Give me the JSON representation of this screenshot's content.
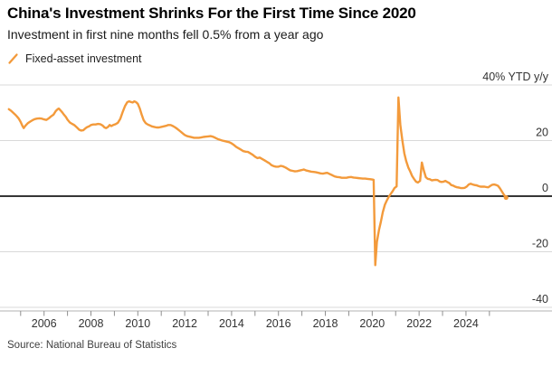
{
  "header": {
    "title": "China's Investment Shrinks For the First Time Since 2020",
    "subtitle": "Investment in first nine months fell 0.5% from a year ago"
  },
  "legend": {
    "series_label": "Fixed-asset investment",
    "swatch_icon": "orange-slash-icon",
    "swatch_color": "#F39A3B"
  },
  "footer": {
    "source": "Source: National Bureau of Statistics"
  },
  "chart_data": {
    "type": "line",
    "title": "China's Investment Shrinks For the First Time Since 2020",
    "subtitle": "Investment in first nine months fell 0.5% from a year ago",
    "unit_label": "40% YTD y/y",
    "xlabel": "",
    "ylabel": "YTD y/y %",
    "ylim": [
      -40,
      40
    ],
    "xlim": [
      2004.12,
      2027.67
    ],
    "grid": "horizontal",
    "legend_position": "top-left",
    "y_ticks": [
      {
        "value": 40,
        "label": "40% YTD y/y"
      },
      {
        "value": 20,
        "label": "20"
      },
      {
        "value": 0,
        "label": "0"
      },
      {
        "value": -20,
        "label": "-20"
      },
      {
        "value": -40,
        "label": "-40"
      }
    ],
    "x_ticks_minor_years": [
      2005,
      2006,
      2007,
      2008,
      2009,
      2010,
      2011,
      2012,
      2013,
      2014,
      2015,
      2016,
      2017,
      2018,
      2019,
      2020,
      2021,
      2022,
      2023,
      2024,
      2025
    ],
    "x_ticks_labeled": [
      {
        "year": 2006,
        "label": "2006"
      },
      {
        "year": 2008,
        "label": "2008"
      },
      {
        "year": 2010,
        "label": "2010"
      },
      {
        "year": 2012,
        "label": "2012"
      },
      {
        "year": 2014,
        "label": "2014"
      },
      {
        "year": 2016,
        "label": "2016"
      },
      {
        "year": 2018,
        "label": "2018"
      },
      {
        "year": 2020,
        "label": "2020"
      },
      {
        "year": 2022,
        "label": "2022"
      },
      {
        "year": 2024,
        "label": "2024"
      }
    ],
    "colors": {
      "series": "#F39A3B",
      "gridline": "#d9d9d9",
      "zero_line": "#1a1a1a",
      "axis_line": "#b3b3b3",
      "tick": "#8f8f8f",
      "tick_label": "#333333"
    },
    "end_point_marker": true,
    "series": [
      {
        "name": "Fixed-asset investment",
        "color": "#F39A3B",
        "points": [
          [
            2004.5,
            31.3
          ],
          [
            2004.58,
            30.8
          ],
          [
            2004.67,
            30.1
          ],
          [
            2004.76,
            29.4
          ],
          [
            2004.84,
            28.7
          ],
          [
            2004.92,
            27.9
          ],
          [
            2005.0,
            26.7
          ],
          [
            2005.08,
            25.2
          ],
          [
            2005.13,
            24.5
          ],
          [
            2005.2,
            25.3
          ],
          [
            2005.3,
            26.2
          ],
          [
            2005.4,
            26.8
          ],
          [
            2005.5,
            27.3
          ],
          [
            2005.6,
            27.7
          ],
          [
            2005.7,
            27.9
          ],
          [
            2005.8,
            28.0
          ],
          [
            2005.9,
            27.9
          ],
          [
            2006.0,
            27.6
          ],
          [
            2006.1,
            27.4
          ],
          [
            2006.2,
            28.0
          ],
          [
            2006.3,
            28.7
          ],
          [
            2006.4,
            29.3
          ],
          [
            2006.5,
            30.6
          ],
          [
            2006.58,
            31.3
          ],
          [
            2006.63,
            31.5
          ],
          [
            2006.7,
            30.9
          ],
          [
            2006.78,
            30.1
          ],
          [
            2006.85,
            29.3
          ],
          [
            2006.93,
            28.5
          ],
          [
            2007.0,
            27.5
          ],
          [
            2007.1,
            26.5
          ],
          [
            2007.2,
            26.0
          ],
          [
            2007.3,
            25.5
          ],
          [
            2007.4,
            24.7
          ],
          [
            2007.5,
            23.9
          ],
          [
            2007.58,
            23.6
          ],
          [
            2007.67,
            23.7
          ],
          [
            2007.75,
            24.3
          ],
          [
            2007.83,
            24.8
          ],
          [
            2007.92,
            25.1
          ],
          [
            2008.0,
            25.6
          ],
          [
            2008.1,
            25.8
          ],
          [
            2008.2,
            25.8
          ],
          [
            2008.3,
            26.0
          ],
          [
            2008.4,
            25.9
          ],
          [
            2008.5,
            25.4
          ],
          [
            2008.58,
            24.7
          ],
          [
            2008.65,
            24.5
          ],
          [
            2008.73,
            24.9
          ],
          [
            2008.8,
            25.6
          ],
          [
            2008.87,
            25.2
          ],
          [
            2008.95,
            25.6
          ],
          [
            2009.05,
            25.9
          ],
          [
            2009.15,
            26.4
          ],
          [
            2009.25,
            27.8
          ],
          [
            2009.35,
            30.2
          ],
          [
            2009.45,
            32.4
          ],
          [
            2009.55,
            33.8
          ],
          [
            2009.63,
            34.1
          ],
          [
            2009.7,
            33.9
          ],
          [
            2009.78,
            33.7
          ],
          [
            2009.85,
            34.1
          ],
          [
            2009.93,
            33.8
          ],
          [
            2010.0,
            33.2
          ],
          [
            2010.08,
            31.6
          ],
          [
            2010.16,
            29.4
          ],
          [
            2010.25,
            27.3
          ],
          [
            2010.33,
            26.3
          ],
          [
            2010.42,
            25.8
          ],
          [
            2010.5,
            25.5
          ],
          [
            2010.6,
            25.1
          ],
          [
            2010.7,
            24.9
          ],
          [
            2010.8,
            24.7
          ],
          [
            2010.9,
            24.7
          ],
          [
            2011.0,
            24.9
          ],
          [
            2011.1,
            25.1
          ],
          [
            2011.2,
            25.3
          ],
          [
            2011.3,
            25.6
          ],
          [
            2011.4,
            25.6
          ],
          [
            2011.5,
            25.2
          ],
          [
            2011.6,
            24.7
          ],
          [
            2011.7,
            24.1
          ],
          [
            2011.8,
            23.4
          ],
          [
            2011.9,
            22.7
          ],
          [
            2012.0,
            22.0
          ],
          [
            2012.1,
            21.6
          ],
          [
            2012.2,
            21.4
          ],
          [
            2012.3,
            21.2
          ],
          [
            2012.4,
            21.0
          ],
          [
            2012.5,
            21.0
          ],
          [
            2012.6,
            21.0
          ],
          [
            2012.7,
            21.1
          ],
          [
            2012.8,
            21.3
          ],
          [
            2012.9,
            21.4
          ],
          [
            2013.0,
            21.5
          ],
          [
            2013.1,
            21.6
          ],
          [
            2013.2,
            21.4
          ],
          [
            2013.3,
            21.0
          ],
          [
            2013.4,
            20.6
          ],
          [
            2013.5,
            20.3
          ],
          [
            2013.6,
            20.0
          ],
          [
            2013.7,
            19.8
          ],
          [
            2013.8,
            19.6
          ],
          [
            2013.9,
            19.4
          ],
          [
            2014.0,
            19.0
          ],
          [
            2014.1,
            18.4
          ],
          [
            2014.2,
            17.7
          ],
          [
            2014.3,
            17.2
          ],
          [
            2014.4,
            16.7
          ],
          [
            2014.5,
            16.2
          ],
          [
            2014.6,
            16.0
          ],
          [
            2014.7,
            15.9
          ],
          [
            2014.8,
            15.4
          ],
          [
            2014.9,
            14.9
          ],
          [
            2015.0,
            14.2
          ],
          [
            2015.1,
            13.7
          ],
          [
            2015.2,
            13.9
          ],
          [
            2015.3,
            13.4
          ],
          [
            2015.4,
            12.9
          ],
          [
            2015.5,
            12.4
          ],
          [
            2015.6,
            11.9
          ],
          [
            2015.7,
            11.2
          ],
          [
            2015.8,
            10.8
          ],
          [
            2015.9,
            10.6
          ],
          [
            2016.0,
            10.6
          ],
          [
            2016.1,
            10.9
          ],
          [
            2016.2,
            10.7
          ],
          [
            2016.3,
            10.3
          ],
          [
            2016.4,
            9.8
          ],
          [
            2016.5,
            9.3
          ],
          [
            2016.6,
            9.1
          ],
          [
            2016.7,
            8.9
          ],
          [
            2016.8,
            9.0
          ],
          [
            2016.9,
            9.2
          ],
          [
            2017.0,
            9.4
          ],
          [
            2017.08,
            9.6
          ],
          [
            2017.2,
            9.2
          ],
          [
            2017.3,
            9.0
          ],
          [
            2017.4,
            8.8
          ],
          [
            2017.5,
            8.7
          ],
          [
            2017.6,
            8.6
          ],
          [
            2017.7,
            8.4
          ],
          [
            2017.8,
            8.2
          ],
          [
            2017.9,
            8.1
          ],
          [
            2018.0,
            8.3
          ],
          [
            2018.08,
            8.4
          ],
          [
            2018.2,
            7.9
          ],
          [
            2018.3,
            7.5
          ],
          [
            2018.4,
            7.1
          ],
          [
            2018.5,
            6.9
          ],
          [
            2018.6,
            6.8
          ],
          [
            2018.7,
            6.6
          ],
          [
            2018.8,
            6.6
          ],
          [
            2018.9,
            6.6
          ],
          [
            2019.0,
            6.8
          ],
          [
            2019.1,
            6.9
          ],
          [
            2019.2,
            6.7
          ],
          [
            2019.3,
            6.6
          ],
          [
            2019.4,
            6.5
          ],
          [
            2019.5,
            6.4
          ],
          [
            2019.6,
            6.3
          ],
          [
            2019.7,
            6.3
          ],
          [
            2019.8,
            6.2
          ],
          [
            2019.9,
            6.1
          ],
          [
            2020.0,
            6.0
          ],
          [
            2020.06,
            5.9
          ],
          [
            2020.13,
            -24.8
          ],
          [
            2020.2,
            -16.5
          ],
          [
            2020.29,
            -12.2
          ],
          [
            2020.37,
            -9.2
          ],
          [
            2020.45,
            -5.8
          ],
          [
            2020.54,
            -3.1
          ],
          [
            2020.62,
            -1.6
          ],
          [
            2020.7,
            -0.3
          ],
          [
            2020.79,
            0.8
          ],
          [
            2020.87,
            1.8
          ],
          [
            2020.95,
            2.9
          ],
          [
            2021.04,
            3.5
          ],
          [
            2021.12,
            35.5
          ],
          [
            2021.2,
            25.6
          ],
          [
            2021.29,
            19.9
          ],
          [
            2021.37,
            15.4
          ],
          [
            2021.45,
            12.6
          ],
          [
            2021.54,
            10.3
          ],
          [
            2021.62,
            8.9
          ],
          [
            2021.7,
            7.3
          ],
          [
            2021.79,
            6.1
          ],
          [
            2021.87,
            5.2
          ],
          [
            2021.95,
            4.9
          ],
          [
            2022.04,
            5.5
          ],
          [
            2022.12,
            12.1
          ],
          [
            2022.2,
            9.3
          ],
          [
            2022.29,
            6.8
          ],
          [
            2022.37,
            6.2
          ],
          [
            2022.45,
            6.1
          ],
          [
            2022.54,
            5.7
          ],
          [
            2022.62,
            5.8
          ],
          [
            2022.7,
            5.9
          ],
          [
            2022.79,
            5.8
          ],
          [
            2022.87,
            5.3
          ],
          [
            2022.95,
            5.1
          ],
          [
            2023.04,
            5.2
          ],
          [
            2023.12,
            5.5
          ],
          [
            2023.2,
            5.1
          ],
          [
            2023.29,
            4.7
          ],
          [
            2023.37,
            4.0
          ],
          [
            2023.45,
            3.8
          ],
          [
            2023.54,
            3.4
          ],
          [
            2023.62,
            3.2
          ],
          [
            2023.7,
            3.1
          ],
          [
            2023.79,
            2.9
          ],
          [
            2023.87,
            2.9
          ],
          [
            2023.95,
            3.0
          ],
          [
            2024.04,
            3.5
          ],
          [
            2024.12,
            4.2
          ],
          [
            2024.2,
            4.5
          ],
          [
            2024.29,
            4.2
          ],
          [
            2024.37,
            4.0
          ],
          [
            2024.45,
            3.9
          ],
          [
            2024.54,
            3.6
          ],
          [
            2024.62,
            3.4
          ],
          [
            2024.7,
            3.4
          ],
          [
            2024.79,
            3.4
          ],
          [
            2024.87,
            3.3
          ],
          [
            2024.95,
            3.2
          ],
          [
            2025.04,
            3.7
          ],
          [
            2025.12,
            4.1
          ],
          [
            2025.2,
            4.2
          ],
          [
            2025.29,
            4.0
          ],
          [
            2025.37,
            3.7
          ],
          [
            2025.45,
            2.8
          ],
          [
            2025.54,
            1.6
          ],
          [
            2025.62,
            0.5
          ],
          [
            2025.71,
            -0.5
          ]
        ]
      }
    ]
  }
}
